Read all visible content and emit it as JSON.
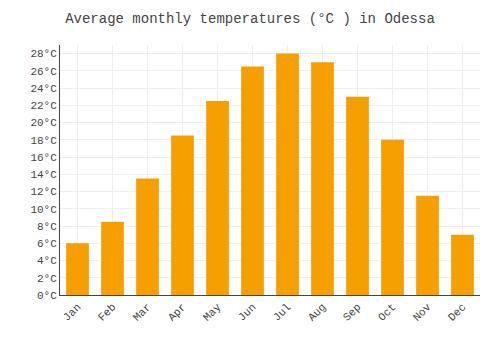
{
  "chart_data": {
    "type": "bar",
    "title": "Average monthly temperatures (°C ) in Odessa",
    "categories": [
      "Jan",
      "Feb",
      "Mar",
      "Apr",
      "May",
      "Jun",
      "Jul",
      "Aug",
      "Sep",
      "Oct",
      "Nov",
      "Dec"
    ],
    "values": [
      6,
      8.5,
      13.5,
      18.5,
      22.5,
      26.5,
      28,
      27,
      23,
      18,
      11.5,
      7
    ],
    "color": "#F5A000",
    "ylim": [
      0,
      29
    ],
    "yticks": [
      {
        "value": 0,
        "label": "0°C"
      },
      {
        "value": 2,
        "label": "2°C"
      },
      {
        "value": 4,
        "label": "4°C"
      },
      {
        "value": 6,
        "label": "6°C"
      },
      {
        "value": 8,
        "label": "8°C"
      },
      {
        "value": 10,
        "label": "10°C"
      },
      {
        "value": 12,
        "label": "12°C"
      },
      {
        "value": 14,
        "label": "14°C"
      },
      {
        "value": 16,
        "label": "16°C"
      },
      {
        "value": 18,
        "label": "18°C"
      },
      {
        "value": 20,
        "label": "20°C"
      },
      {
        "value": 22,
        "label": "22°C"
      },
      {
        "value": 24,
        "label": "24°C"
      },
      {
        "value": 26,
        "label": "26°C"
      },
      {
        "value": 28,
        "label": "28°C"
      }
    ],
    "grid": true
  }
}
